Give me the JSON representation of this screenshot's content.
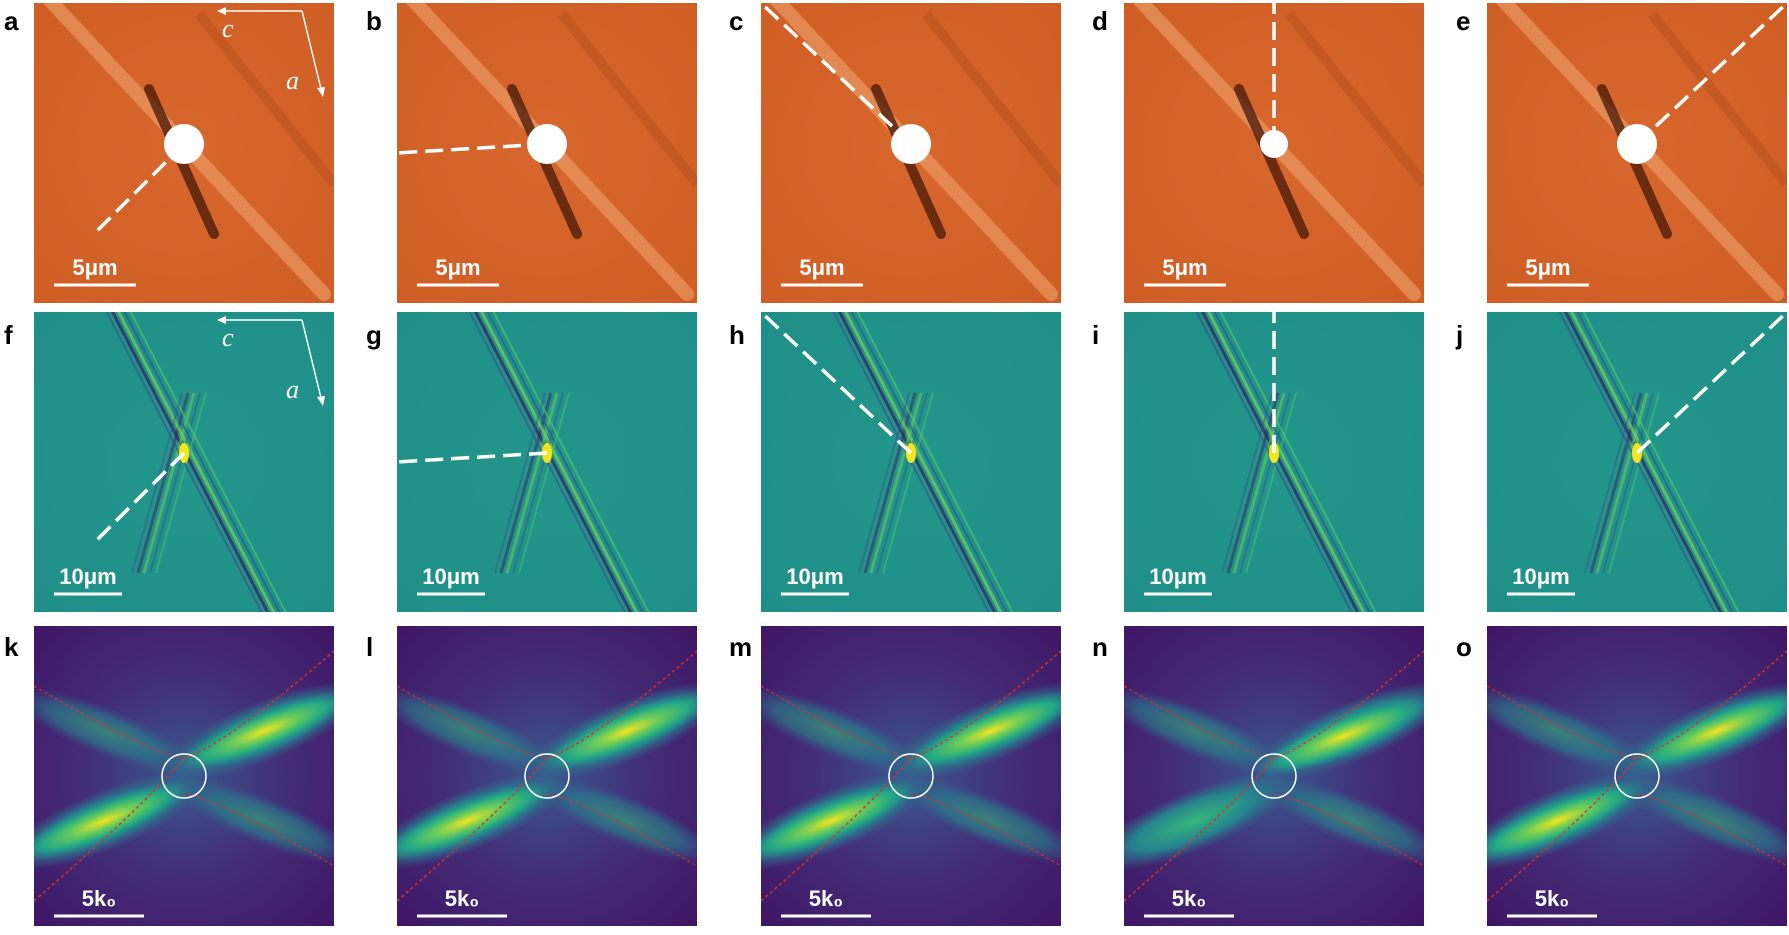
{
  "panels": [
    {
      "label": "a",
      "scale_bar": "5μm",
      "axis_labels": [
        "c",
        "a"
      ]
    },
    {
      "label": "b",
      "scale_bar": "5μm"
    },
    {
      "label": "c",
      "scale_bar": "5μm"
    },
    {
      "label": "d",
      "scale_bar": "5μm"
    },
    {
      "label": "e",
      "scale_bar": "5μm"
    },
    {
      "label": "f",
      "scale_bar": "10μm",
      "axis_labels": [
        "c",
        "a"
      ]
    },
    {
      "label": "g",
      "scale_bar": "10μm"
    },
    {
      "label": "h",
      "scale_bar": "10μm"
    },
    {
      "label": "i",
      "scale_bar": "10μm"
    },
    {
      "label": "j",
      "scale_bar": "10μm"
    },
    {
      "label": "k",
      "scale_bar": "5k₀"
    },
    {
      "label": "l",
      "scale_bar": "5k₀"
    },
    {
      "label": "m",
      "scale_bar": "5k₀"
    },
    {
      "label": "n",
      "scale_bar": "5k₀"
    },
    {
      "label": "o",
      "scale_bar": "5k₀"
    }
  ]
}
